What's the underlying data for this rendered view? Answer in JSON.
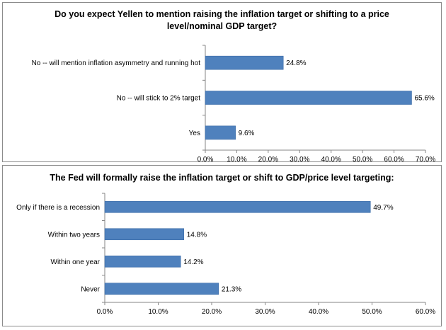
{
  "chart_data": [
    {
      "type": "bar",
      "orientation": "horizontal",
      "title": "Do you expect Yellen to mention raising the inflation target or shifting to a price level/nominal GDP target?",
      "categories": [
        "No -- will mention inflation asymmetry and running hot",
        "No -- will stick to 2% target",
        "Yes"
      ],
      "values": [
        24.8,
        65.6,
        9.6
      ],
      "data_labels": [
        "24.8%",
        "65.6%",
        "9.6%"
      ],
      "xlim": [
        0,
        70
      ],
      "ticks": [
        "0.0%",
        "10.0%",
        "20.0%",
        "30.0%",
        "40.0%",
        "50.0%",
        "60.0%",
        "70.0%"
      ],
      "bar_color": "#4f81bd",
      "grid": false
    },
    {
      "type": "bar",
      "orientation": "horizontal",
      "title": "The Fed will formally raise the inflation target or shift to GDP/price level targeting:",
      "categories": [
        "Only if there is a recession",
        "Within two years",
        "Within one year",
        "Never"
      ],
      "values": [
        49.7,
        14.8,
        14.2,
        21.3
      ],
      "data_labels": [
        "49.7%",
        "14.8%",
        "14.2%",
        "21.3%"
      ],
      "xlim": [
        0,
        60
      ],
      "ticks": [
        "0.0%",
        "10.0%",
        "20.0%",
        "30.0%",
        "40.0%",
        "50.0%",
        "60.0%"
      ],
      "bar_color": "#4f81bd",
      "grid": false
    }
  ]
}
